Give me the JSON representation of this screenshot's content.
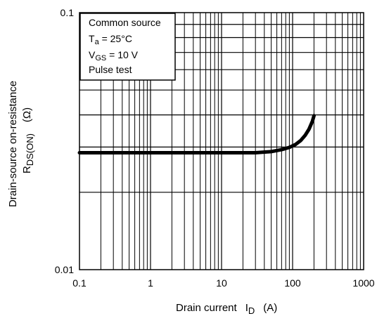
{
  "chart_data": {
    "type": "line",
    "xscale": "log",
    "yscale": "log",
    "xlim": [
      0.1,
      1000
    ],
    "ylim": [
      0.01,
      0.1
    ],
    "grid": true,
    "x_ticks": [
      "0.1",
      "1",
      "10",
      "100",
      "1000"
    ],
    "y_ticks": [
      "0.1",
      "0.01"
    ],
    "xlabel": {
      "main": "Drain current",
      "symbol": "I",
      "subscript": "D",
      "unit": "(A)"
    },
    "ylabel": {
      "main": "Drain-source on-resistance",
      "symbol": "R",
      "subscript": "DS(ON)",
      "unit": "(Ω)"
    },
    "legend": {
      "placement": "top-left",
      "line1": "Common source",
      "line2_symbol": "T",
      "line2_sub": "a",
      "line2_rest": " = 25°C",
      "line3_symbol": "V",
      "line3_sub": "GS",
      "line3_rest": " = 10 V",
      "line4": "Pulse test"
    },
    "series": [
      {
        "x": [
          0.1,
          1,
          10,
          30,
          50,
          70,
          90,
          110,
          130,
          150,
          170,
          190,
          200
        ],
        "y": [
          0.0285,
          0.0285,
          0.0285,
          0.0285,
          0.0288,
          0.0293,
          0.0299,
          0.0307,
          0.0318,
          0.0333,
          0.0352,
          0.0378,
          0.0397
        ]
      }
    ]
  }
}
